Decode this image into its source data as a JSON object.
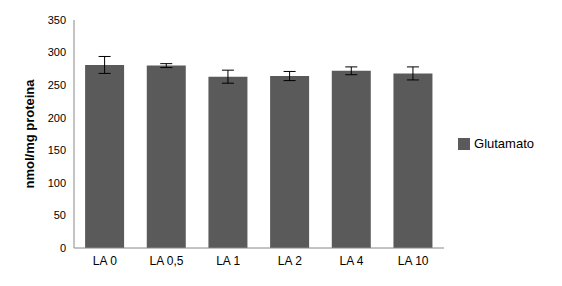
{
  "chart_data": {
    "type": "bar",
    "categories": [
      "LA 0",
      "LA 0,5",
      "LA 1",
      "LA 2",
      "LA 4",
      "LA 10"
    ],
    "series": [
      {
        "name": "Glutamato",
        "color": "#5a5a5a",
        "values": [
          281,
          280,
          263,
          264,
          272,
          268
        ],
        "errors": [
          13,
          3,
          10,
          7,
          6,
          10
        ]
      }
    ],
    "y_label": "nmol/mg proteina",
    "ylim": [
      0,
      350
    ],
    "yticks": [
      0,
      50,
      100,
      150,
      200,
      250,
      300,
      350
    ],
    "grid": false,
    "legend": "right"
  }
}
